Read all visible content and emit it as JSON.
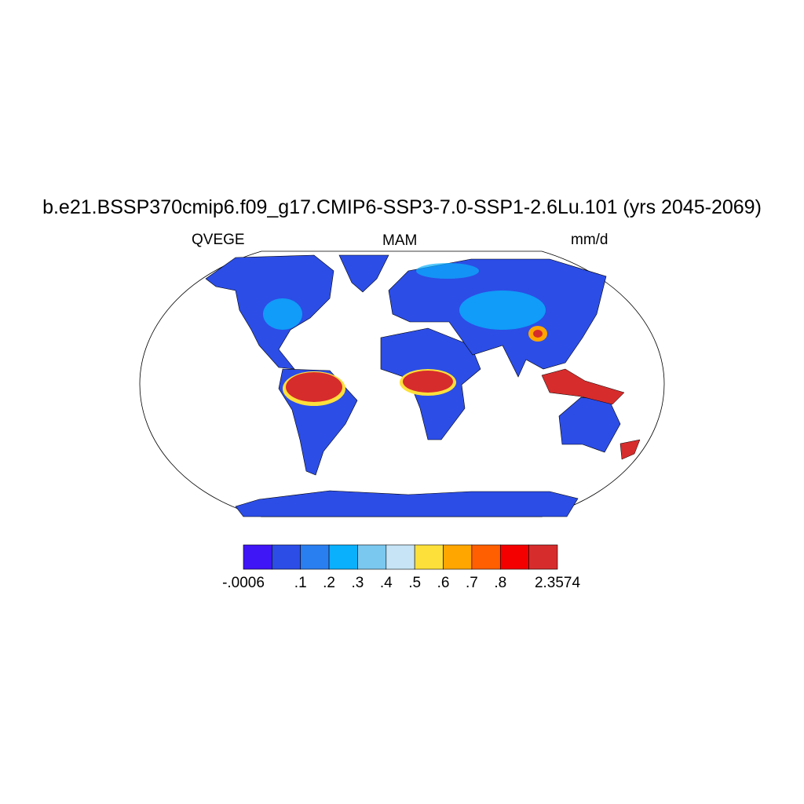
{
  "title": "b.e21.BSSP370cmip6.f09_g17.CMIP6-SSP3-7.0-SSP1-2.6Lu.101 (yrs 2045-2069)",
  "left_label": "QVEGE",
  "center_label": "MAM",
  "right_label": "mm/d",
  "map": {
    "projection": "Robinson",
    "land_dominant_color": "#2c4de6",
    "high_value_color": "#d62c2c"
  },
  "colorbar": {
    "colors": [
      "#3f16f5",
      "#2c4de6",
      "#2a7ff0",
      "#0ab0fc",
      "#7ac8f0",
      "#c6e4f6",
      "#fde03a",
      "#ffa600",
      "#ff5f00",
      "#f50000",
      "#d62c2c"
    ],
    "labels": [
      "-.0006",
      ".1",
      ".2",
      ".3",
      ".4",
      ".5",
      ".6",
      ".7",
      ".8",
      "2.3574"
    ]
  }
}
